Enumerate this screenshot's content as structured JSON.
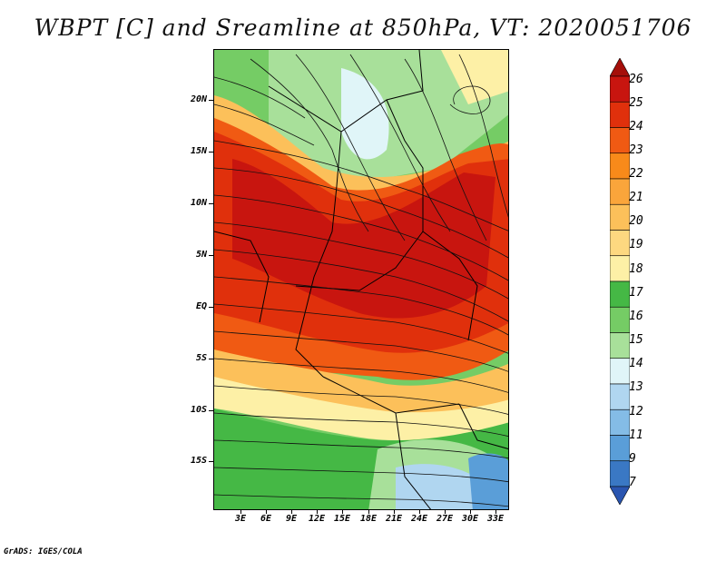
{
  "title": "WBPT [C] and Sreamline at 850hPa, VT: 2020051706",
  "credit": "GrADS: IGES/COLA",
  "map": {
    "lat_labels": [
      "20N",
      "15N",
      "10N",
      "5N",
      "EQ",
      "5S",
      "10S",
      "15S"
    ],
    "lon_labels": [
      "3E",
      "6E",
      "9E",
      "12E",
      "15E",
      "18E",
      "21E",
      "24E",
      "27E",
      "30E",
      "33E"
    ],
    "colors": {
      "deep_red": "#c8150f",
      "red": "#e0300c",
      "red_orange": "#f05a13",
      "orange": "#f88a1a",
      "light_orange": "#fcc05a",
      "pale_yellow": "#fdf0a6",
      "green": "#45b845",
      "mid_green": "#75cc65",
      "light_green": "#a8e09a",
      "pale_cyan": "#e0f5f8",
      "light_blue": "#b0d6f0",
      "blue": "#5a9ed8",
      "streamline": "#111111"
    }
  },
  "colorbar": {
    "labels": [
      "26",
      "25",
      "24",
      "23",
      "22",
      "21",
      "20",
      "19",
      "18",
      "17",
      "16",
      "15",
      "14",
      "13",
      "12",
      "11",
      "9",
      "7"
    ],
    "colors": [
      "#a50f0a",
      "#c8150f",
      "#e0300c",
      "#f05a13",
      "#f88a1a",
      "#faa53b",
      "#fcc05a",
      "#fdd880",
      "#fdf0a6",
      "#45b845",
      "#75cc65",
      "#a8e09a",
      "#e0f5f8",
      "#b0d6f0",
      "#84bce6",
      "#5a9ed8",
      "#3a78c4",
      "#2a55b0"
    ]
  }
}
